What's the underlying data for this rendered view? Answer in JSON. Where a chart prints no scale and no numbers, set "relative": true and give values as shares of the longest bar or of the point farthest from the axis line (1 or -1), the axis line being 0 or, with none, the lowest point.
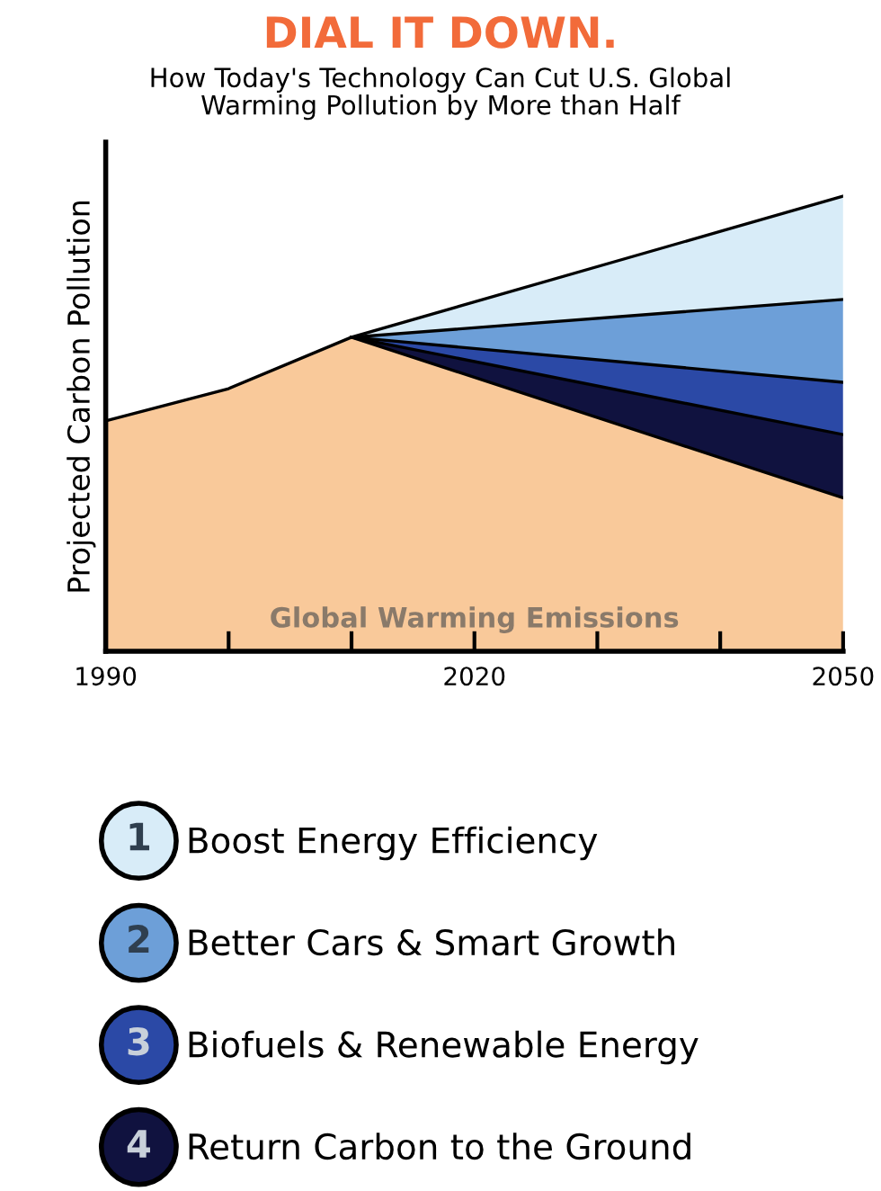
{
  "chart_data": {
    "type": "area",
    "title": "DIAL IT DOWN.",
    "subtitle": "How Today's Technology Can Cut U.S. Global\nWarming Pollution by More than Half",
    "ylabel": "Projected Carbon Pollution",
    "relative": true,
    "stacked": true,
    "x": [
      1990,
      2000,
      2010,
      2050
    ],
    "xlim": [
      1990,
      2050
    ],
    "xticks": [
      1990,
      {
        "value": 2000,
        "label": null
      },
      {
        "value": 2010,
        "label": null
      },
      2020,
      {
        "value": 2030,
        "label": null
      },
      {
        "value": 2040,
        "label": null
      },
      2050
    ],
    "series": [
      {
        "name": "Global Warming Emissions",
        "color": "#f9c99a",
        "values": [
          0.506,
          0.577,
          0.69,
          0.337
        ]
      },
      {
        "name": "Return Carbon to the Ground",
        "color": "#10123f",
        "values": [
          null,
          null,
          0,
          0.139
        ]
      },
      {
        "name": "Biofuels & Renewable Energy",
        "color": "#2b49a6",
        "values": [
          null,
          null,
          0,
          0.115
        ]
      },
      {
        "name": "Better Cars & Smart Growth",
        "color": "#6d9fd8",
        "values": [
          null,
          null,
          0,
          0.182
        ]
      },
      {
        "name": "Boost Energy Efficiency",
        "color": "#d8ecf8",
        "values": [
          null,
          null,
          0,
          0.227
        ]
      }
    ],
    "annotations": [
      "1",
      "2",
      "3",
      "4"
    ],
    "legend": "bottom",
    "grid": false
  }
}
